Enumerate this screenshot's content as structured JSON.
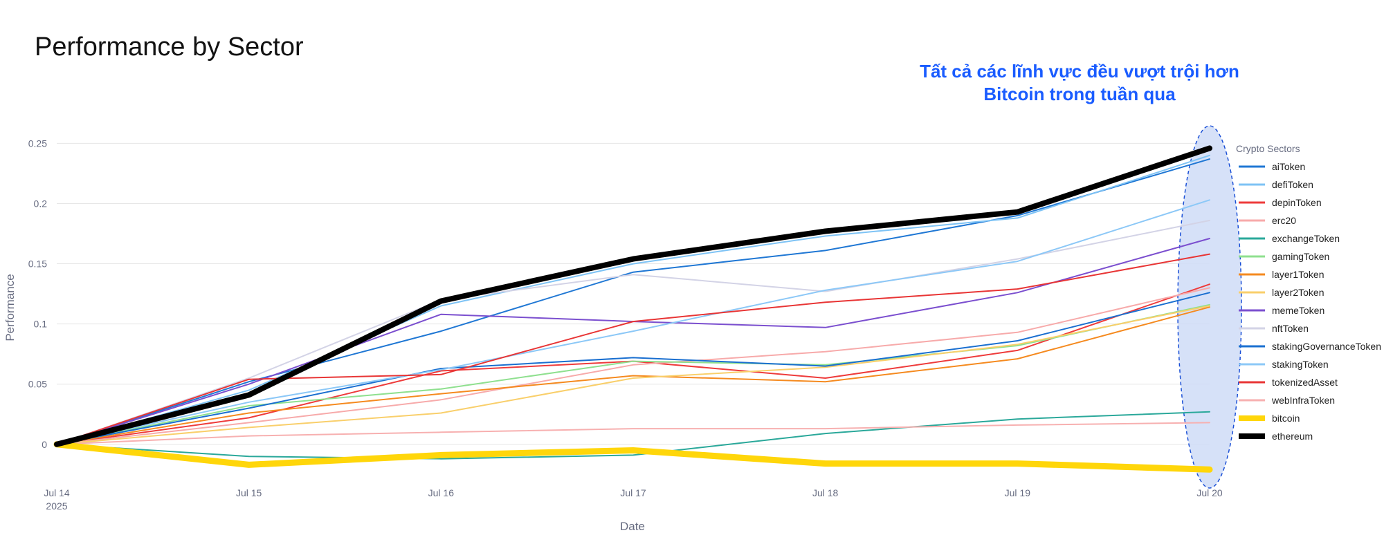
{
  "chart_data": {
    "type": "line",
    "title": "Performance by Sector",
    "annotation": [
      "Tất cả các lĩnh vực đều vượt trội hơn",
      "Bitcoin trong tuần qua"
    ],
    "xlabel": "Date",
    "ylabel": "Performance",
    "x": [
      "Jul 14",
      "Jul 15",
      "Jul 16",
      "Jul 17",
      "Jul 18",
      "Jul 19",
      "Jul 20"
    ],
    "x_tick_labels": [
      "Jul 14",
      "Jul 15",
      "Jul 16",
      "Jul 17",
      "Jul 18",
      "Jul 19",
      "Jul 20"
    ],
    "x_year_label": "2025",
    "y_ticks": [
      0,
      0.05,
      0.1,
      0.15,
      0.2,
      0.25
    ],
    "y_tick_labels": [
      "0",
      "0.05",
      "0.1",
      "0.15",
      "0.2",
      "0.25"
    ],
    "ylim": [
      -0.03,
      0.26
    ],
    "grid": true,
    "legend_title": "Crypto Sectors",
    "legend_position": "right",
    "highlight": "ellipse around Jul 20 values",
    "series": [
      {
        "name": "aiToken",
        "color": "#1f77d4",
        "width": 2,
        "values": [
          0,
          0.052,
          0.094,
          0.143,
          0.161,
          0.19,
          0.237
        ]
      },
      {
        "name": "defiToken",
        "color": "#7ec3f5",
        "width": 2,
        "values": [
          0,
          0.045,
          0.115,
          0.15,
          0.173,
          0.188,
          0.24
        ]
      },
      {
        "name": "depinToken",
        "color": "#ee3b3b",
        "width": 2,
        "values": [
          0,
          0.022,
          0.061,
          0.069,
          0.055,
          0.078,
          0.133
        ]
      },
      {
        "name": "erc20",
        "color": "#f7aaaa",
        "width": 2,
        "values": [
          0,
          0.018,
          0.037,
          0.066,
          0.077,
          0.093,
          0.13
        ]
      },
      {
        "name": "exchangeToken",
        "color": "#2aa89a",
        "width": 2,
        "values": [
          0,
          -0.01,
          -0.012,
          -0.009,
          0.009,
          0.021,
          0.027
        ]
      },
      {
        "name": "gamingToken",
        "color": "#8fe08f",
        "width": 2,
        "values": [
          0,
          0.032,
          0.046,
          0.069,
          0.066,
          0.082,
          0.116
        ]
      },
      {
        "name": "layer1Token",
        "color": "#f58a1f",
        "width": 2,
        "values": [
          0,
          0.026,
          0.042,
          0.057,
          0.052,
          0.071,
          0.114
        ]
      },
      {
        "name": "layer2Token",
        "color": "#f9cf6b",
        "width": 2,
        "values": [
          0,
          0.014,
          0.026,
          0.055,
          0.064,
          0.083,
          0.115
        ]
      },
      {
        "name": "memeToken",
        "color": "#7b4fcf",
        "width": 2,
        "values": [
          0,
          0.05,
          0.108,
          0.102,
          0.097,
          0.126,
          0.171
        ]
      },
      {
        "name": "nftToken",
        "color": "#d3d3e6",
        "width": 2,
        "values": [
          0,
          0.055,
          0.12,
          0.141,
          0.127,
          0.154,
          0.186
        ]
      },
      {
        "name": "stakingGovernanceToken",
        "color": "#1a6fd0",
        "width": 2,
        "values": [
          0,
          0.03,
          0.063,
          0.072,
          0.065,
          0.086,
          0.126
        ]
      },
      {
        "name": "stakingToken",
        "color": "#8cc8f7",
        "width": 2,
        "values": [
          0,
          0.035,
          0.062,
          0.094,
          0.128,
          0.152,
          0.203
        ]
      },
      {
        "name": "tokenizedAsset",
        "color": "#e83535",
        "width": 2,
        "values": [
          0,
          0.054,
          0.058,
          0.102,
          0.118,
          0.129,
          0.158
        ]
      },
      {
        "name": "webInfraToken",
        "color": "#f7b0b0",
        "width": 2,
        "values": [
          0,
          0.007,
          0.01,
          0.013,
          0.013,
          0.016,
          0.018
        ]
      },
      {
        "name": "bitcoin",
        "color": "#ffd60a",
        "width": 9,
        "values": [
          0,
          -0.017,
          -0.009,
          -0.005,
          -0.016,
          -0.016,
          -0.021
        ]
      },
      {
        "name": "ethereum",
        "color": "#000000",
        "width": 8,
        "values": [
          0,
          0.041,
          0.119,
          0.154,
          0.177,
          0.193,
          0.246
        ]
      }
    ]
  }
}
